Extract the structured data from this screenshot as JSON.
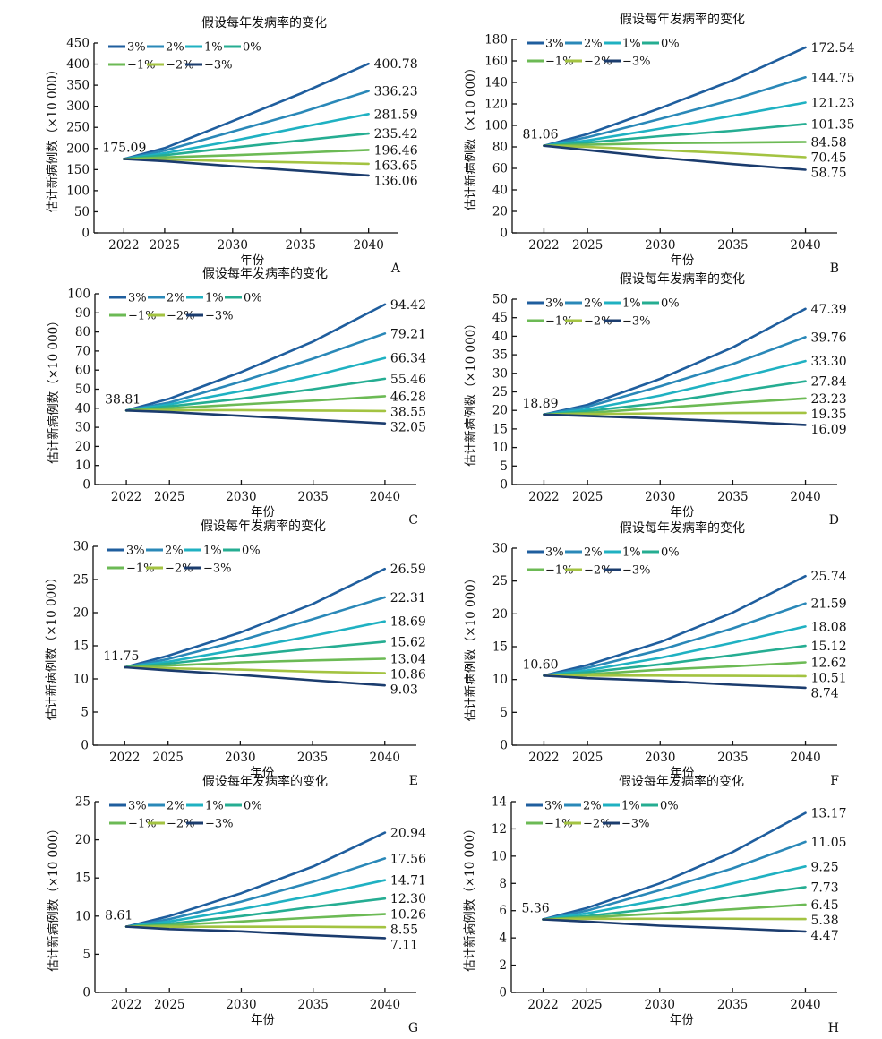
{
  "series_names": [
    "3%",
    "2%",
    "1%",
    "0%",
    "−1%",
    "−2%",
    "−3%"
  ],
  "series_colors": [
    "#1f5e9e",
    "#2a88b8",
    "#1fb1c2",
    "#25ad92",
    "#6cba55",
    "#a3c341",
    "#1b3c6e"
  ],
  "chart_data": [
    {
      "panel": "A",
      "type": "line",
      "title": "假设每年发病率的变化",
      "xlabel": "年份",
      "ylabel": "估计新病例数（×10 000）",
      "x": [
        2022,
        2025,
        2030,
        2035,
        2040
      ],
      "xticks": [
        "2022",
        "2025",
        "2030",
        "2035",
        "2040"
      ],
      "ylim": [
        0,
        450
      ],
      "yticks": [
        "0",
        "50",
        "100",
        "150",
        "200",
        "250",
        "300",
        "350",
        "400",
        "450"
      ],
      "start_label": "175.09",
      "end_labels": [
        "400.78",
        "336.23",
        "281.59",
        "235.42",
        "196.46",
        "163.65",
        "136.06"
      ],
      "series": [
        {
          "name": "3%",
          "values": [
            175.09,
            201,
            265,
            330,
            400.78
          ]
        },
        {
          "name": "2%",
          "values": [
            175.09,
            195,
            240,
            285,
            336.23
          ]
        },
        {
          "name": "1%",
          "values": [
            175.09,
            189,
            218,
            250,
            281.59
          ]
        },
        {
          "name": "0%",
          "values": [
            175.09,
            184,
            202,
            219,
            235.42
          ]
        },
        {
          "name": "−1%",
          "values": [
            175.09,
            179,
            184,
            190,
            196.46
          ]
        },
        {
          "name": "−2%",
          "values": [
            175.09,
            174,
            170,
            167,
            163.65
          ]
        },
        {
          "name": "−3%",
          "values": [
            175.09,
            170,
            158,
            147,
            136.06
          ]
        }
      ]
    },
    {
      "panel": "B",
      "type": "line",
      "title": "假设每年发病率的变化",
      "xlabel": "年份",
      "ylabel": "估计新病例数（×10 000）",
      "x": [
        2022,
        2025,
        2030,
        2035,
        2040
      ],
      "xticks": [
        "2022",
        "2025",
        "2030",
        "2035",
        "2040"
      ],
      "ylim": [
        0,
        180
      ],
      "yticks": [
        "0",
        "20",
        "40",
        "60",
        "80",
        "100",
        "120",
        "140",
        "160",
        "180"
      ],
      "start_label": "81.06",
      "end_labels": [
        "172.54",
        "144.75",
        "121.23",
        "101.35",
        "84.58",
        "70.45",
        "58.75"
      ],
      "series": [
        {
          "name": "3%",
          "values": [
            81.06,
            92,
            116,
            142,
            172.54
          ]
        },
        {
          "name": "2%",
          "values": [
            81.06,
            89,
            106,
            124,
            144.75
          ]
        },
        {
          "name": "1%",
          "values": [
            81.06,
            86,
            97,
            109,
            121.23
          ]
        },
        {
          "name": "0%",
          "values": [
            81.06,
            84,
            90,
            95,
            101.35
          ]
        },
        {
          "name": "−1%",
          "values": [
            81.06,
            82,
            83.5,
            84,
            84.58
          ]
        },
        {
          "name": "−2%",
          "values": [
            81.06,
            80,
            77,
            74,
            70.45
          ]
        },
        {
          "name": "−3%",
          "values": [
            81.06,
            77,
            70,
            64,
            58.75
          ]
        }
      ]
    },
    {
      "panel": "C",
      "type": "line",
      "title": "假设每年发病率的变化",
      "xlabel": "年份",
      "ylabel": "估计新病例数（×10 000）",
      "x": [
        2022,
        2025,
        2030,
        2035,
        2040
      ],
      "xticks": [
        "2022",
        "2025",
        "2030",
        "2035",
        "2040"
      ],
      "ylim": [
        0,
        100
      ],
      "yticks": [
        "0",
        "10",
        "20",
        "30",
        "40",
        "50",
        "60",
        "70",
        "80",
        "90",
        "100"
      ],
      "start_label": "38.81",
      "end_labels": [
        "94.42",
        "79.21",
        "66.34",
        "55.46",
        "46.28",
        "38.55",
        "32.05"
      ],
      "series": [
        {
          "name": "3%",
          "values": [
            38.81,
            45,
            59,
            75,
            94.42
          ]
        },
        {
          "name": "2%",
          "values": [
            38.81,
            43,
            54,
            66,
            79.21
          ]
        },
        {
          "name": "1%",
          "values": [
            38.81,
            42,
            49,
            57,
            66.34
          ]
        },
        {
          "name": "0%",
          "values": [
            38.81,
            41,
            45,
            50,
            55.46
          ]
        },
        {
          "name": "−1%",
          "values": [
            38.81,
            40,
            42,
            44,
            46.28
          ]
        },
        {
          "name": "−2%",
          "values": [
            38.81,
            39,
            39,
            38.8,
            38.55
          ]
        },
        {
          "name": "−3%",
          "values": [
            38.81,
            38,
            36,
            34,
            32.05
          ]
        }
      ]
    },
    {
      "panel": "D",
      "type": "line",
      "title": "假设每年发病率的变化",
      "xlabel": "年份",
      "ylabel": "估计新病例数（×10 000）",
      "x": [
        2022,
        2025,
        2030,
        2035,
        2040
      ],
      "xticks": [
        "2022",
        "2025",
        "2030",
        "2035",
        "2040"
      ],
      "ylim": [
        0,
        50
      ],
      "yticks": [
        "0",
        "5",
        "10",
        "15",
        "20",
        "25",
        "30",
        "35",
        "40",
        "45",
        "50"
      ],
      "start_label": "18.89",
      "end_labels": [
        "47.39",
        "39.76",
        "33.30",
        "27.84",
        "23.23",
        "19.35",
        "16.09"
      ],
      "series": [
        {
          "name": "3%",
          "values": [
            18.89,
            21.5,
            28.5,
            37,
            47.39
          ]
        },
        {
          "name": "2%",
          "values": [
            18.89,
            21,
            26.5,
            32.5,
            39.76
          ]
        },
        {
          "name": "1%",
          "values": [
            18.89,
            20.3,
            24,
            28.5,
            33.3
          ]
        },
        {
          "name": "0%",
          "values": [
            18.89,
            19.8,
            22,
            25,
            27.84
          ]
        },
        {
          "name": "−1%",
          "values": [
            18.89,
            19.3,
            20.7,
            22,
            23.23
          ]
        },
        {
          "name": "−2%",
          "values": [
            18.89,
            19,
            19.2,
            19.3,
            19.35
          ]
        },
        {
          "name": "−3%",
          "values": [
            18.89,
            18.5,
            17.8,
            17,
            16.09
          ]
        }
      ]
    },
    {
      "panel": "E",
      "type": "line",
      "title": "假设每年发病率的变化",
      "xlabel": "年份",
      "ylabel": "估计新病例数（×10 000）",
      "x": [
        2022,
        2025,
        2030,
        2035,
        2040
      ],
      "xticks": [
        "2022",
        "2025",
        "2030",
        "2035",
        "2040"
      ],
      "ylim": [
        0,
        30
      ],
      "yticks": [
        "0",
        "5",
        "10",
        "15",
        "20",
        "25",
        "30"
      ],
      "start_label": "11.75",
      "end_labels": [
        "26.59",
        "22.31",
        "18.69",
        "15.62",
        "13.04",
        "10.86",
        "9.03"
      ],
      "series": [
        {
          "name": "3%",
          "values": [
            11.75,
            13.5,
            17,
            21.3,
            26.59
          ]
        },
        {
          "name": "2%",
          "values": [
            11.75,
            13,
            15.8,
            19,
            22.31
          ]
        },
        {
          "name": "1%",
          "values": [
            11.75,
            12.6,
            14.5,
            16.5,
            18.69
          ]
        },
        {
          "name": "0%",
          "values": [
            11.75,
            12.3,
            13.5,
            14.6,
            15.62
          ]
        },
        {
          "name": "−1%",
          "values": [
            11.75,
            12,
            12.5,
            12.8,
            13.04
          ]
        },
        {
          "name": "−2%",
          "values": [
            11.75,
            11.6,
            11.4,
            11.1,
            10.86
          ]
        },
        {
          "name": "−3%",
          "values": [
            11.75,
            11.3,
            10.6,
            9.8,
            9.03
          ]
        }
      ]
    },
    {
      "panel": "F",
      "type": "line",
      "title": "假设每年发病率的变化",
      "xlabel": "年份",
      "ylabel": "估计新病例数（×10 000）",
      "x": [
        2022,
        2025,
        2030,
        2035,
        2040
      ],
      "xticks": [
        "2022",
        "2025",
        "2030",
        "2035",
        "2040"
      ],
      "ylim": [
        0,
        30
      ],
      "yticks": [
        "0",
        "5",
        "10",
        "15",
        "20",
        "25",
        "30"
      ],
      "start_label": "10.60",
      "end_labels": [
        "25.74",
        "21.59",
        "18.08",
        "15.12",
        "12.62",
        "10.51",
        "8.74"
      ],
      "series": [
        {
          "name": "3%",
          "values": [
            10.6,
            12.2,
            15.7,
            20.2,
            25.74
          ]
        },
        {
          "name": "2%",
          "values": [
            10.6,
            11.8,
            14.5,
            17.8,
            21.59
          ]
        },
        {
          "name": "1%",
          "values": [
            10.6,
            11.4,
            13.3,
            15.6,
            18.08
          ]
        },
        {
          "name": "0%",
          "values": [
            10.6,
            11.1,
            12.3,
            13.7,
            15.12
          ]
        },
        {
          "name": "−1%",
          "values": [
            10.6,
            10.8,
            11.5,
            12,
            12.62
          ]
        },
        {
          "name": "−2%",
          "values": [
            10.6,
            10.6,
            10.6,
            10.55,
            10.51
          ]
        },
        {
          "name": "−3%",
          "values": [
            10.6,
            10.2,
            9.8,
            9.2,
            8.74
          ]
        }
      ]
    },
    {
      "panel": "G",
      "type": "line",
      "title": "假设每年发病率的变化",
      "xlabel": "年份",
      "ylabel": "估计新病例数（×10 000）",
      "x": [
        2022,
        2025,
        2030,
        2035,
        2040
      ],
      "xticks": [
        "2022",
        "2025",
        "2030",
        "2035",
        "2040"
      ],
      "ylim": [
        0,
        25
      ],
      "yticks": [
        "0",
        "5",
        "10",
        "15",
        "20",
        "25"
      ],
      "start_label": "8.61",
      "end_labels": [
        "20.94",
        "17.56",
        "14.71",
        "12.30",
        "10.26",
        "8.55",
        "7.11"
      ],
      "series": [
        {
          "name": "3%",
          "values": [
            8.61,
            10,
            13,
            16.5,
            20.94
          ]
        },
        {
          "name": "2%",
          "values": [
            8.61,
            9.6,
            11.9,
            14.5,
            17.56
          ]
        },
        {
          "name": "1%",
          "values": [
            8.61,
            9.3,
            10.9,
            12.7,
            14.71
          ]
        },
        {
          "name": "0%",
          "values": [
            8.61,
            9,
            10,
            11.2,
            12.3
          ]
        },
        {
          "name": "−1%",
          "values": [
            8.61,
            8.8,
            9.3,
            9.8,
            10.26
          ]
        },
        {
          "name": "−2%",
          "values": [
            8.61,
            8.6,
            8.6,
            8.6,
            8.55
          ]
        },
        {
          "name": "−3%",
          "values": [
            8.61,
            8.3,
            8,
            7.5,
            7.11
          ]
        }
      ]
    },
    {
      "panel": "H",
      "type": "line",
      "title": "假设每年发病率的变化",
      "xlabel": "年份",
      "ylabel": "估计新病例数（×10 000）",
      "x": [
        2022,
        2025,
        2030,
        2035,
        2040
      ],
      "xticks": [
        "2022",
        "2025",
        "2030",
        "2035",
        "2040"
      ],
      "ylim": [
        0,
        14
      ],
      "yticks": [
        "0",
        "2",
        "4",
        "6",
        "8",
        "10",
        "12",
        "14"
      ],
      "start_label": "5.36",
      "end_labels": [
        "13.17",
        "11.05",
        "9.25",
        "7.73",
        "6.45",
        "5.38",
        "4.47"
      ],
      "series": [
        {
          "name": "3%",
          "values": [
            5.36,
            6.2,
            8,
            10.3,
            13.17
          ]
        },
        {
          "name": "2%",
          "values": [
            5.36,
            6,
            7.5,
            9.1,
            11.05
          ]
        },
        {
          "name": "1%",
          "values": [
            5.36,
            5.8,
            6.8,
            8,
            9.25
          ]
        },
        {
          "name": "0%",
          "values": [
            5.36,
            5.6,
            6.2,
            7,
            7.73
          ]
        },
        {
          "name": "−1%",
          "values": [
            5.36,
            5.5,
            5.8,
            6.1,
            6.45
          ]
        },
        {
          "name": "−2%",
          "values": [
            5.36,
            5.4,
            5.4,
            5.4,
            5.38
          ]
        },
        {
          "name": "−3%",
          "values": [
            5.36,
            5.2,
            4.9,
            4.7,
            4.47
          ]
        }
      ]
    }
  ]
}
